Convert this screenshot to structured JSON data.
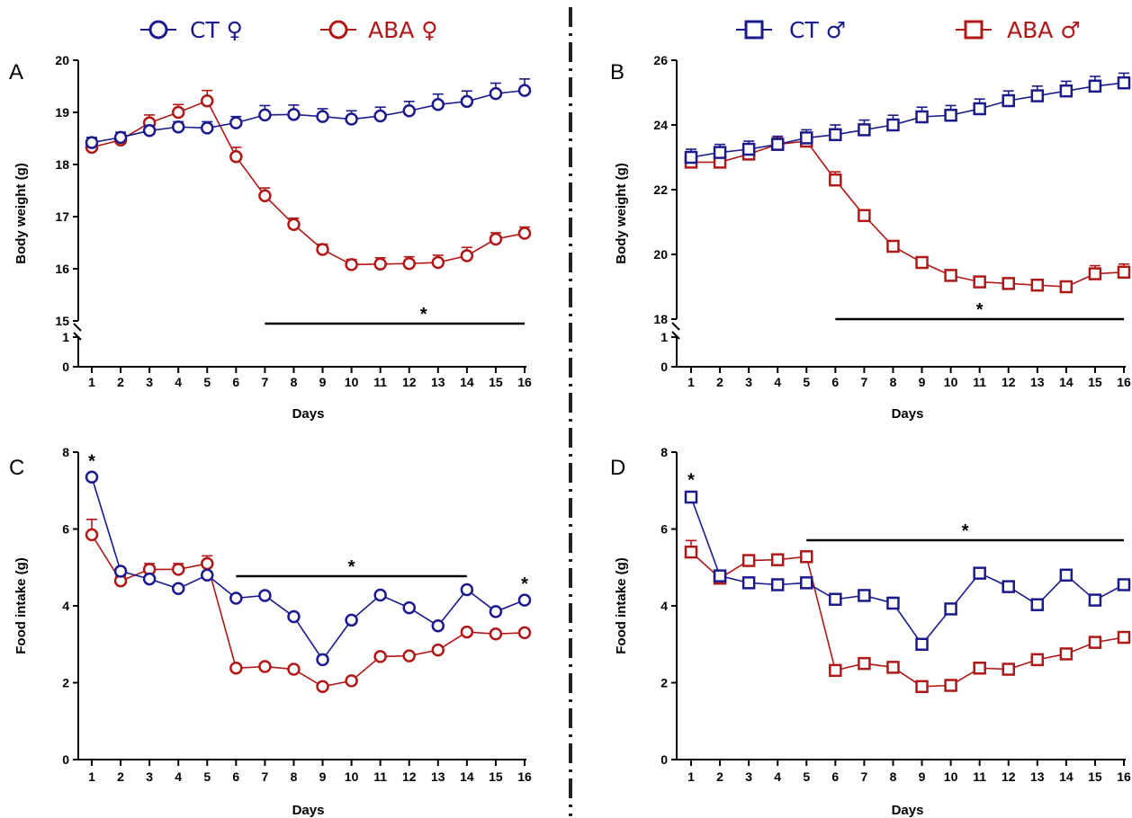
{
  "colors": {
    "ct": "#1a1a8c",
    "aba": "#b01717",
    "axis": "#000000",
    "divider": "#222222"
  },
  "legend": {
    "female": [
      {
        "label": "CT ♀",
        "series": "ct",
        "marker": "circle"
      },
      {
        "label": "ABA ♀",
        "series": "aba",
        "marker": "circle"
      }
    ],
    "male": [
      {
        "label": "CT ♂",
        "series": "ct",
        "marker": "square"
      },
      {
        "label": "ABA ♂",
        "series": "aba",
        "marker": "square"
      }
    ]
  },
  "chart_data": [
    {
      "panel": "A",
      "type": "line",
      "marker": "circle",
      "xlabel": "Days",
      "ylabel": "Body weight (g)",
      "x": [
        1,
        2,
        3,
        4,
        5,
        6,
        7,
        8,
        9,
        10,
        11,
        12,
        13,
        14,
        15,
        16
      ],
      "ylim": [
        0,
        20
      ],
      "axis_break": {
        "lower": [
          0,
          1
        ],
        "upper": [
          15,
          20
        ]
      },
      "yticks": [
        0,
        1,
        15,
        16,
        17,
        18,
        19,
        20
      ],
      "series": [
        {
          "key": "ct",
          "values": [
            18.42,
            18.52,
            18.65,
            18.72,
            18.7,
            18.8,
            18.95,
            18.96,
            18.92,
            18.87,
            18.93,
            19.03,
            19.15,
            19.21,
            19.36,
            19.42
          ],
          "errors": [
            0.1,
            0.1,
            0.1,
            0.1,
            0.12,
            0.12,
            0.18,
            0.18,
            0.15,
            0.16,
            0.17,
            0.18,
            0.2,
            0.2,
            0.2,
            0.22
          ]
        },
        {
          "key": "aba",
          "values": [
            18.33,
            18.47,
            18.8,
            19.0,
            19.22,
            18.15,
            17.4,
            16.85,
            16.37,
            16.08,
            16.09,
            16.1,
            16.12,
            16.25,
            16.57,
            16.68
          ],
          "errors": [
            0.08,
            0.1,
            0.15,
            0.15,
            0.2,
            0.18,
            0.15,
            0.12,
            0.1,
            0.1,
            0.12,
            0.13,
            0.14,
            0.16,
            0.12,
            0.12
          ]
        }
      ],
      "significance": {
        "star": "*",
        "from": 7,
        "to": 16,
        "star_x": 12.5,
        "points": []
      }
    },
    {
      "panel": "B",
      "type": "line",
      "marker": "square",
      "xlabel": "Days",
      "ylabel": "Body weight (g)",
      "x": [
        1,
        2,
        3,
        4,
        5,
        6,
        7,
        8,
        9,
        10,
        11,
        12,
        13,
        14,
        15,
        16
      ],
      "ylim": [
        0,
        26
      ],
      "axis_break": {
        "lower": [
          0,
          1
        ],
        "upper": [
          18,
          26
        ]
      },
      "yticks": [
        0,
        1,
        18,
        20,
        22,
        24,
        26
      ],
      "series": [
        {
          "key": "ct",
          "values": [
            23.0,
            23.15,
            23.25,
            23.4,
            23.6,
            23.7,
            23.85,
            24.0,
            24.25,
            24.3,
            24.5,
            24.75,
            24.9,
            25.05,
            25.2,
            25.3
          ],
          "errors": [
            0.25,
            0.25,
            0.25,
            0.25,
            0.25,
            0.3,
            0.3,
            0.3,
            0.3,
            0.3,
            0.3,
            0.3,
            0.3,
            0.3,
            0.3,
            0.3
          ]
        },
        {
          "key": "aba",
          "values": [
            22.85,
            22.85,
            23.1,
            23.4,
            23.5,
            22.3,
            21.2,
            20.25,
            19.75,
            19.35,
            19.15,
            19.1,
            19.05,
            19.0,
            19.4,
            19.45
          ],
          "errors": [
            0.15,
            0.15,
            0.15,
            0.2,
            0.2,
            0.25,
            0.15,
            0.15,
            0.15,
            0.15,
            0.15,
            0.15,
            0.15,
            0.15,
            0.25,
            0.25
          ]
        }
      ],
      "significance": {
        "star": "*",
        "from": 6,
        "to": 16,
        "star_x": 11,
        "points": []
      }
    },
    {
      "panel": "C",
      "type": "line",
      "marker": "circle",
      "xlabel": "Days",
      "ylabel": "Food intake (g)",
      "x": [
        1,
        2,
        3,
        4,
        5,
        6,
        7,
        8,
        9,
        10,
        11,
        12,
        13,
        14,
        15,
        16
      ],
      "ylim": [
        0,
        8
      ],
      "yticks": [
        0,
        2,
        4,
        6,
        8
      ],
      "series": [
        {
          "key": "ct",
          "values": [
            7.35,
            4.9,
            4.7,
            4.45,
            4.8,
            4.2,
            4.27,
            3.72,
            2.6,
            3.63,
            4.28,
            3.95,
            3.48,
            4.42,
            3.85,
            4.15
          ],
          "errors": [
            0.08,
            0.08,
            0.08,
            0.08,
            0.08,
            0.08,
            0.08,
            0.08,
            0.1,
            0.08,
            0.08,
            0.08,
            0.08,
            0.08,
            0.08,
            0.08
          ]
        },
        {
          "key": "aba",
          "values": [
            5.85,
            4.65,
            4.95,
            4.95,
            5.1,
            2.38,
            2.42,
            2.35,
            1.9,
            2.05,
            2.68,
            2.7,
            2.85,
            3.32,
            3.27,
            3.3
          ],
          "errors": [
            0.4,
            0.12,
            0.15,
            0.15,
            0.2,
            0.05,
            0.05,
            0.05,
            0.05,
            0.05,
            0.05,
            0.05,
            0.05,
            0.05,
            0.05,
            0.05
          ]
        }
      ],
      "significance": {
        "star": "*",
        "from": 6,
        "to": 14,
        "star_x": 10,
        "points": [
          1,
          16
        ]
      }
    },
    {
      "panel": "D",
      "type": "line",
      "marker": "square",
      "xlabel": "Days",
      "ylabel": "Food intake (g)",
      "x": [
        1,
        2,
        3,
        4,
        5,
        6,
        7,
        8,
        9,
        10,
        11,
        12,
        13,
        14,
        15,
        16
      ],
      "ylim": [
        0,
        8
      ],
      "yticks": [
        0,
        2,
        4,
        6,
        8
      ],
      "series": [
        {
          "key": "ct",
          "values": [
            6.83,
            4.78,
            4.6,
            4.55,
            4.6,
            4.17,
            4.27,
            4.07,
            3.0,
            3.92,
            4.85,
            4.5,
            4.03,
            4.8,
            4.15,
            4.55
          ],
          "errors": [
            0.1,
            0.08,
            0.08,
            0.08,
            0.08,
            0.08,
            0.08,
            0.15,
            0.1,
            0.08,
            0.08,
            0.08,
            0.08,
            0.08,
            0.08,
            0.08
          ]
        },
        {
          "key": "aba",
          "values": [
            5.4,
            4.72,
            5.18,
            5.2,
            5.28,
            2.32,
            2.5,
            2.4,
            1.9,
            1.93,
            2.38,
            2.35,
            2.6,
            2.75,
            3.05,
            3.18
          ],
          "errors": [
            0.3,
            0.08,
            0.08,
            0.08,
            0.08,
            0.08,
            0.08,
            0.08,
            0.08,
            0.08,
            0.08,
            0.08,
            0.08,
            0.08,
            0.1,
            0.08
          ]
        }
      ],
      "significance": {
        "star": "*",
        "from": 5,
        "to": 16,
        "star_x": 10.5,
        "points": [
          1
        ]
      }
    }
  ]
}
